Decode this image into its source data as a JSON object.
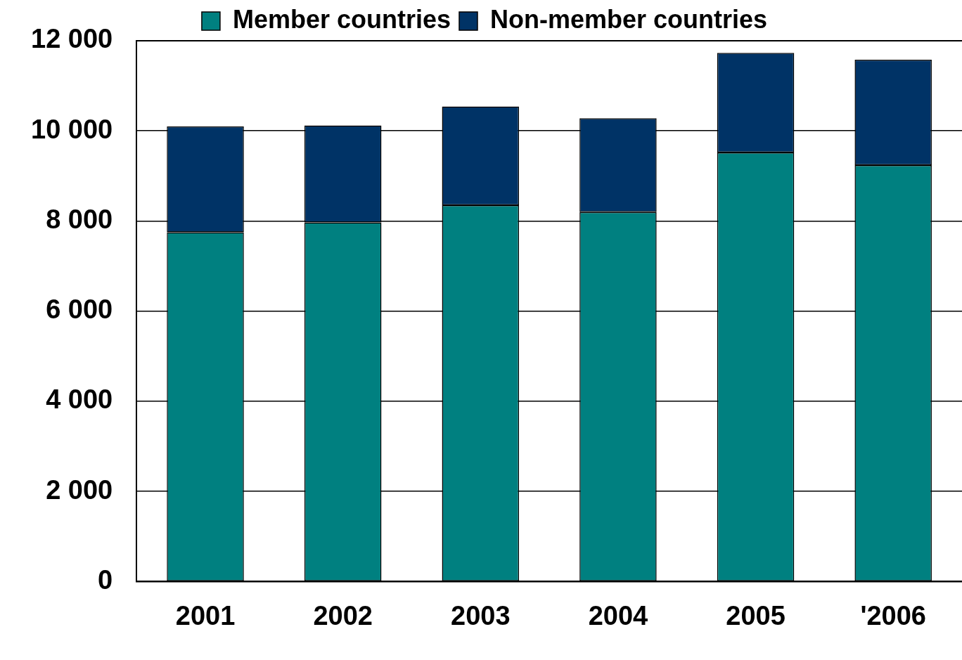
{
  "chart_data": {
    "type": "bar",
    "stacked": true,
    "categories": [
      "2001",
      "2002",
      "2003",
      "2004",
      "2005",
      "'2006"
    ],
    "series": [
      {
        "name": "Member countries",
        "color": "#008080",
        "values": [
          7750,
          7970,
          8350,
          8200,
          9520,
          9240
        ]
      },
      {
        "name": "Non-member countries",
        "color": "#003366",
        "values": [
          2350,
          2150,
          2190,
          2080,
          2210,
          2340
        ]
      }
    ],
    "ylim": [
      0,
      12000
    ],
    "yticks": [
      {
        "value": 0,
        "label": "0"
      },
      {
        "value": 2000,
        "label": "2 000"
      },
      {
        "value": 4000,
        "label": "4 000"
      },
      {
        "value": 6000,
        "label": "6 000"
      },
      {
        "value": 8000,
        "label": "8 000"
      },
      {
        "value": 10000,
        "label": "10 000"
      },
      {
        "value": 12000,
        "label": "12 000"
      }
    ],
    "grid": "y",
    "legend": "top"
  }
}
